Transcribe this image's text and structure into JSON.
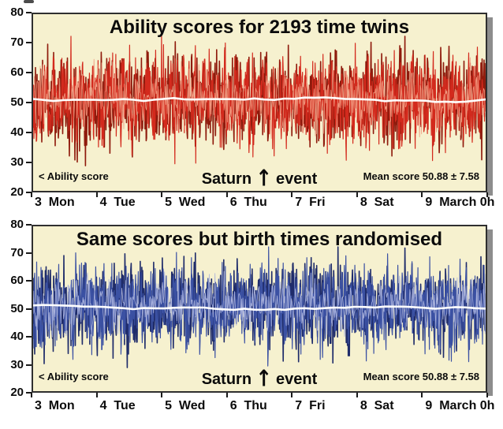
{
  "figure": {
    "description": "Two stacked time-series panels comparing ability scores of time twins against a randomised control, around a Saturn event during one week in March"
  },
  "chart_data": [
    {
      "type": "line",
      "title": "Ability scores for 2193 time twins",
      "ylim": [
        20,
        80
      ],
      "y_ticks": [
        80,
        70,
        60,
        50,
        40,
        30,
        20
      ],
      "x_ticklabels": [
        "3  Mon",
        "4  Tue",
        "5  Wed",
        "6  Thu",
        "7  Fri",
        "8  Sat",
        "9  March 0h"
      ],
      "n_x_intervals": 7,
      "grid": false,
      "legend": false,
      "panel_bg": "#f6f1cf",
      "series_color": "#d32a1d",
      "series_color_dark": "#8f1b0d",
      "series_color_light": "#f0997f",
      "mean_line_color": "#ffffff",
      "stats": {
        "n_twins": 2193,
        "mean": 50.88,
        "sd": 7.58
      },
      "annotations": {
        "left": "< Ability score",
        "center_pre": "Saturn",
        "center_arrow": "↑",
        "center_post": "event",
        "right": "Mean score 50.88 ± 7.58"
      },
      "series_model": {
        "comment": "high-frequency noisy score series rendered from these distribution parameters",
        "n_points": 1150,
        "mean": 50.88,
        "sd": 7.58,
        "clip": [
          27.5,
          72.5
        ],
        "highlight_sd": 5.0,
        "highlight_n_points": 700,
        "seeds": {
          "dark": 11,
          "main": 22,
          "light": 33,
          "mean_line": 44
        },
        "mean_line": {
          "base": 50.9,
          "wiggle": 1.3,
          "n_points": 46
        }
      }
    },
    {
      "type": "line",
      "title": "Same scores but birth times randomised",
      "ylim": [
        20,
        80
      ],
      "y_ticks": [
        80,
        70,
        60,
        50,
        40,
        30,
        20
      ],
      "x_ticklabels": [
        "3  Mon",
        "4  Tue",
        "5  Wed",
        "6  Thu",
        "7  Fri",
        "8  Sat",
        "9  March 0h"
      ],
      "n_x_intervals": 7,
      "grid": false,
      "legend": false,
      "panel_bg": "#f6f1cf",
      "series_color": "#3b51a3",
      "series_color_dark": "#1f2c6a",
      "series_color_light": "#a8b1dc",
      "mean_line_color": "#ffffff",
      "stats": {
        "n_twins": 2193,
        "mean": 50.88,
        "sd": 7.58
      },
      "annotations": {
        "left": "< Ability score",
        "center_pre": "Saturn",
        "center_arrow": "↑",
        "center_post": "event",
        "right": "Mean score 50.88 ± 7.58"
      },
      "series_model": {
        "comment": "same distribution, randomised order",
        "n_points": 1150,
        "mean": 50.88,
        "sd": 7.58,
        "clip": [
          27.5,
          72.5
        ],
        "highlight_sd": 5.0,
        "highlight_n_points": 700,
        "seeds": {
          "dark": 55,
          "main": 66,
          "light": 77,
          "mean_line": 88
        },
        "mean_line": {
          "base": 50.9,
          "wiggle": 1.3,
          "n_points": 46
        }
      }
    }
  ]
}
